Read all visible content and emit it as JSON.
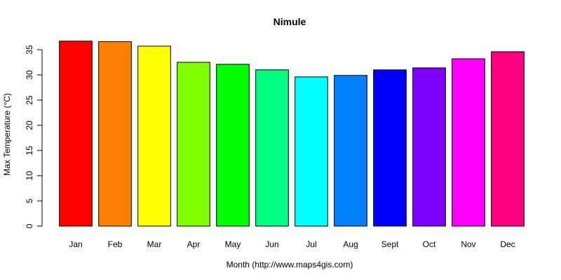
{
  "chart_data": {
    "type": "bar",
    "title": "Nimule",
    "xlabel": "Month (http://www.maps4gis.com)",
    "ylabel": "Max Temperature (°C)",
    "categories": [
      "Jan",
      "Feb",
      "Mar",
      "Apr",
      "May",
      "Jun",
      "Jul",
      "Aug",
      "Sept",
      "Oct",
      "Nov",
      "Dec"
    ],
    "values": [
      36.7,
      36.6,
      35.7,
      32.5,
      32.1,
      31.0,
      29.6,
      29.9,
      31.0,
      31.4,
      33.2,
      34.6
    ],
    "colors": [
      "#ff0000",
      "#ff8000",
      "#ffff00",
      "#80ff00",
      "#00ff00",
      "#00ff80",
      "#00ffff",
      "#0080ff",
      "#0000ff",
      "#8000ff",
      "#ff00ff",
      "#ff0080"
    ],
    "yticks": [
      0,
      5,
      10,
      15,
      20,
      25,
      30,
      35
    ],
    "ylim": [
      0,
      37
    ],
    "grid": false,
    "legend": "none"
  }
}
